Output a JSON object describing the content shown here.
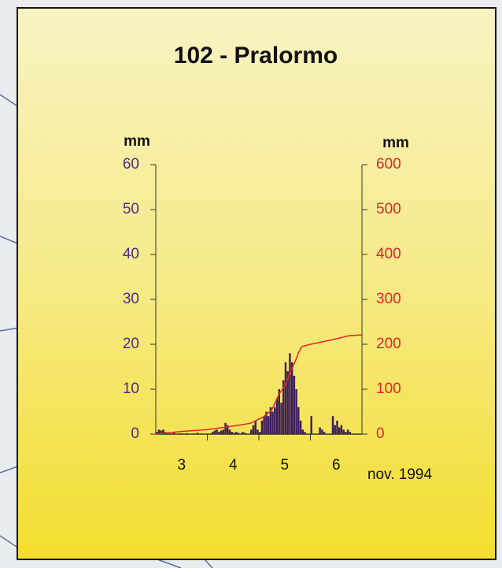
{
  "chart_data": {
    "type": "histogram",
    "title": "102 - Pralormo",
    "y_label": "mm",
    "y2_label": "mm",
    "x_label": "nov. 1994",
    "xlim": [
      0,
      96
    ],
    "xticks": [
      {
        "value": 12,
        "label": "3"
      },
      {
        "value": 36,
        "label": "4"
      },
      {
        "value": 60,
        "label": "5"
      },
      {
        "value": 84,
        "label": "6"
      }
    ],
    "x_tick_marks": [
      24,
      48,
      72
    ],
    "bins": [
      0,
      1,
      2,
      3,
      4,
      5,
      6,
      7,
      8,
      9,
      10,
      11,
      12,
      13,
      14,
      15,
      16,
      17,
      18,
      19,
      20,
      21,
      22,
      23,
      24,
      25,
      26,
      27,
      28,
      29,
      30,
      31,
      32,
      33,
      34,
      35,
      36,
      37,
      38,
      39,
      40,
      41,
      42,
      43,
      44,
      45,
      46,
      47,
      48,
      49,
      50,
      51,
      52,
      53,
      54,
      55,
      56,
      57,
      58,
      59,
      60,
      61,
      62,
      63,
      64,
      65,
      66,
      67,
      68,
      69,
      70,
      71,
      72,
      73,
      74,
      75,
      76,
      77,
      78,
      79,
      80,
      81,
      82,
      83,
      84,
      85,
      86,
      87,
      88,
      89,
      90,
      91,
      92,
      93,
      94,
      95,
      96
    ],
    "values": [
      0.5,
      1,
      0.8,
      1,
      0.5,
      0.3,
      0,
      0,
      0.3,
      0,
      0,
      0.2,
      0,
      0,
      0.2,
      0,
      0,
      0,
      0,
      0.3,
      0,
      0,
      0,
      0,
      0,
      0,
      0.5,
      0.8,
      1,
      0.5,
      0.8,
      1,
      2.5,
      2,
      1,
      0.5,
      0.3,
      0.5,
      0.3,
      0,
      0.5,
      0.3,
      0,
      0,
      1,
      2,
      3,
      1,
      0.5,
      3,
      4,
      5,
      4,
      6,
      5,
      6,
      8,
      10,
      7,
      12,
      16,
      14,
      18,
      16,
      13,
      10,
      6,
      3,
      1,
      0.5,
      0,
      0,
      4,
      0,
      0,
      0,
      1.5,
      1,
      0.5,
      0,
      0,
      0,
      4,
      2,
      3,
      1.5,
      2,
      1,
      0.5,
      1,
      0.5,
      0,
      0,
      0,
      0,
      0
    ],
    "color": "#3b1c5c",
    "ylim": [
      0,
      60
    ],
    "yticks": [
      0,
      10,
      20,
      30,
      40,
      50,
      60
    ],
    "ytick_color": "#4a2c80",
    "y2lim": [
      0,
      600
    ],
    "y2ticks": [
      0,
      100,
      200,
      300,
      400,
      500,
      600
    ],
    "y2tick_color": "#e8232a",
    "cumulative": {
      "axis": "y2",
      "color": "#e8232a",
      "x": [
        0,
        12,
        24,
        36,
        44,
        50,
        54,
        57.5,
        60,
        62,
        63,
        65,
        66.5,
        68,
        72,
        81,
        90,
        96
      ],
      "values": [
        0,
        6,
        10,
        18,
        24,
        38,
        54,
        90,
        107,
        130,
        142,
        163,
        182,
        195,
        200,
        209,
        219,
        221
      ]
    }
  }
}
